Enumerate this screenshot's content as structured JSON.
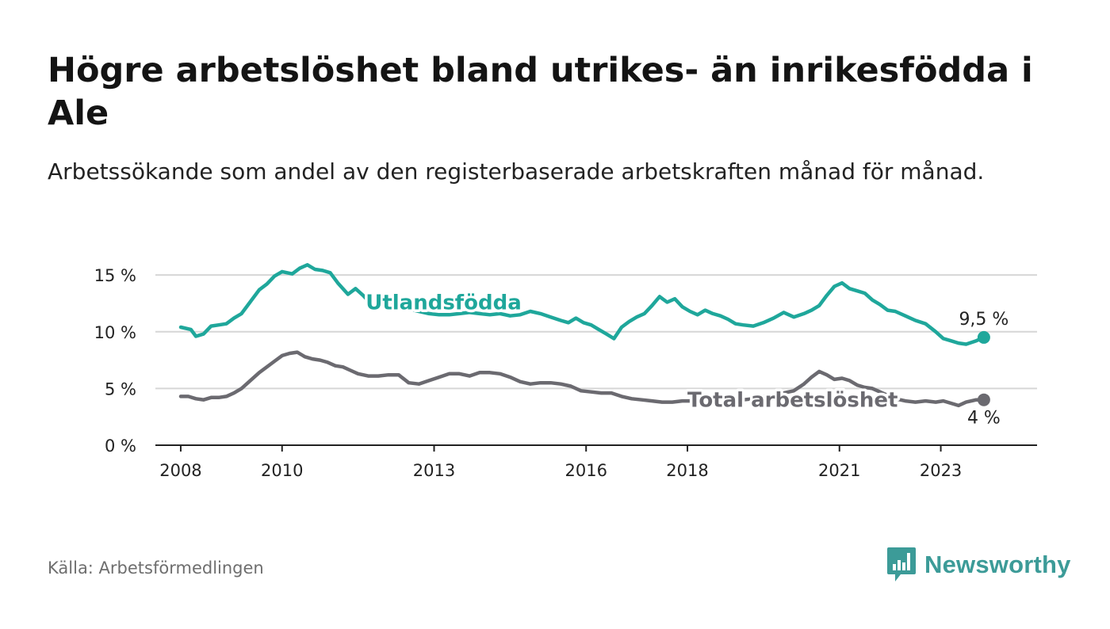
{
  "header": {
    "title": "Högre arbetslöshet bland utrikes- än inrikesfödda i Ale",
    "subtitle": "Arbetssökande som andel av den registerbaserade arbetskraften månad för månad."
  },
  "footer": {
    "source": "Källa: Arbetsförmedlingen",
    "brand": "Newsworthy"
  },
  "colors": {
    "foreign": "#1fa79b",
    "total": "#6b6a70",
    "grid": "#d6d6d6",
    "axis": "#222222",
    "brand": "#3c9b98"
  },
  "chart_data": {
    "type": "line",
    "title": "Högre arbetslöshet bland utrikes- än inrikesfödda i Ale",
    "subtitle": "Arbetssökande som andel av den registerbaserade arbetskraften månad för månad.",
    "xlabel": "",
    "ylabel": "",
    "x_range": [
      2007.5,
      2024.9
    ],
    "ylim": [
      0,
      15.5
    ],
    "x_ticks": [
      {
        "value": 2008,
        "label": "2008"
      },
      {
        "value": 2010,
        "label": "2010"
      },
      {
        "value": 2013,
        "label": "2013"
      },
      {
        "value": 2016,
        "label": "2016"
      },
      {
        "value": 2018,
        "label": "2018"
      },
      {
        "value": 2021,
        "label": "2021"
      },
      {
        "value": 2023,
        "label": "2023"
      }
    ],
    "y_ticks": [
      {
        "value": 0,
        "label": "0 %"
      },
      {
        "value": 5,
        "label": "5 %"
      },
      {
        "value": 10,
        "label": "10 %"
      },
      {
        "value": 15,
        "label": "15 %"
      }
    ],
    "grid": true,
    "series": [
      {
        "name": "Utlandsfödda",
        "end_label": "9,5 %",
        "label_at": {
          "x": 2011.65,
          "y": 12.6
        },
        "x": [
          2008.0,
          2008.2,
          2008.3,
          2008.45,
          2008.6,
          2008.75,
          2008.9,
          2009.05,
          2009.2,
          2009.35,
          2009.55,
          2009.7,
          2009.85,
          2010.0,
          2010.2,
          2010.35,
          2010.5,
          2010.65,
          2010.8,
          2010.95,
          2011.1,
          2011.3,
          2011.45,
          2011.6,
          2011.75,
          2011.9,
          2012.1,
          2012.3,
          2012.5,
          2012.7,
          2012.9,
          2013.1,
          2013.3,
          2013.5,
          2013.7,
          2013.9,
          2014.1,
          2014.3,
          2014.5,
          2014.7,
          2014.9,
          2015.1,
          2015.3,
          2015.5,
          2015.65,
          2015.8,
          2015.95,
          2016.1,
          2016.25,
          2016.4,
          2016.55,
          2016.7,
          2016.85,
          2017.0,
          2017.15,
          2017.3,
          2017.45,
          2017.6,
          2017.75,
          2017.9,
          2018.05,
          2018.2,
          2018.35,
          2018.5,
          2018.65,
          2018.8,
          2018.95,
          2019.1,
          2019.3,
          2019.5,
          2019.7,
          2019.9,
          2020.1,
          2020.3,
          2020.45,
          2020.6,
          2020.75,
          2020.9,
          2021.05,
          2021.2,
          2021.35,
          2021.5,
          2021.65,
          2021.8,
          2021.95,
          2022.1,
          2022.3,
          2022.5,
          2022.7,
          2022.9,
          2023.05,
          2023.2,
          2023.35,
          2023.5,
          2023.7,
          2023.85
        ],
        "values": [
          10.4,
          10.2,
          9.6,
          9.8,
          10.5,
          10.6,
          10.7,
          11.2,
          11.6,
          12.5,
          13.7,
          14.2,
          14.9,
          15.3,
          15.1,
          15.6,
          15.9,
          15.5,
          15.4,
          15.2,
          14.3,
          13.3,
          13.8,
          13.2,
          12.5,
          12.2,
          12.4,
          12.3,
          12.0,
          11.8,
          11.6,
          11.5,
          11.5,
          11.6,
          11.7,
          11.6,
          11.5,
          11.6,
          11.4,
          11.5,
          11.8,
          11.6,
          11.3,
          11.0,
          10.8,
          11.2,
          10.8,
          10.6,
          10.2,
          9.8,
          9.4,
          10.4,
          10.9,
          11.3,
          11.6,
          12.3,
          13.1,
          12.6,
          12.9,
          12.2,
          11.8,
          11.5,
          11.9,
          11.6,
          11.4,
          11.1,
          10.7,
          10.6,
          10.5,
          10.8,
          11.2,
          11.7,
          11.3,
          11.6,
          11.9,
          12.3,
          13.2,
          14.0,
          14.3,
          13.8,
          13.6,
          13.4,
          12.8,
          12.4,
          11.9,
          11.8,
          11.4,
          11.0,
          10.7,
          10.0,
          9.4,
          9.2,
          9.0,
          8.9,
          9.2,
          9.5
        ]
      },
      {
        "name": "Total arbetslöshet",
        "end_label": "4 %",
        "label_at": {
          "x": 2018.0,
          "y": 4.0
        },
        "x": [
          2008.0,
          2008.15,
          2008.3,
          2008.45,
          2008.6,
          2008.75,
          2008.9,
          2009.05,
          2009.2,
          2009.35,
          2009.55,
          2009.7,
          2009.85,
          2010.0,
          2010.15,
          2010.3,
          2010.45,
          2010.6,
          2010.75,
          2010.9,
          2011.05,
          2011.2,
          2011.35,
          2011.5,
          2011.7,
          2011.9,
          2012.1,
          2012.3,
          2012.5,
          2012.7,
          2012.9,
          2013.1,
          2013.3,
          2013.5,
          2013.7,
          2013.9,
          2014.1,
          2014.3,
          2014.5,
          2014.7,
          2014.9,
          2015.1,
          2015.3,
          2015.5,
          2015.7,
          2015.9,
          2016.1,
          2016.3,
          2016.5,
          2016.7,
          2016.9,
          2017.1,
          2017.3,
          2017.5,
          2017.7,
          2017.9,
          2018.1,
          2018.3,
          2018.5,
          2018.7,
          2018.9,
          2019.1,
          2019.3,
          2019.5,
          2019.7,
          2019.9,
          2020.1,
          2020.3,
          2020.45,
          2020.6,
          2020.75,
          2020.9,
          2021.05,
          2021.2,
          2021.35,
          2021.5,
          2021.65,
          2021.8,
          2021.95,
          2022.1,
          2022.3,
          2022.5,
          2022.7,
          2022.9,
          2023.05,
          2023.2,
          2023.35,
          2023.5,
          2023.7,
          2023.85
        ],
        "values": [
          4.3,
          4.3,
          4.1,
          4.0,
          4.2,
          4.2,
          4.3,
          4.6,
          5.0,
          5.6,
          6.4,
          6.9,
          7.4,
          7.9,
          8.1,
          8.2,
          7.8,
          7.6,
          7.5,
          7.3,
          7.0,
          6.9,
          6.6,
          6.3,
          6.1,
          6.1,
          6.2,
          6.2,
          5.5,
          5.4,
          5.7,
          6.0,
          6.3,
          6.3,
          6.1,
          6.4,
          6.4,
          6.3,
          6.0,
          5.6,
          5.4,
          5.5,
          5.5,
          5.4,
          5.2,
          4.8,
          4.7,
          4.6,
          4.6,
          4.3,
          4.1,
          4.0,
          3.9,
          3.8,
          3.8,
          3.9,
          3.9,
          3.8,
          3.8,
          3.9,
          4.0,
          4.0,
          4.1,
          4.3,
          4.4,
          4.6,
          4.8,
          5.4,
          6.0,
          6.5,
          6.2,
          5.8,
          5.9,
          5.7,
          5.3,
          5.1,
          5.0,
          4.7,
          4.4,
          4.1,
          3.9,
          3.8,
          3.9,
          3.8,
          3.9,
          3.7,
          3.5,
          3.8,
          4.0,
          4.0
        ]
      }
    ]
  }
}
